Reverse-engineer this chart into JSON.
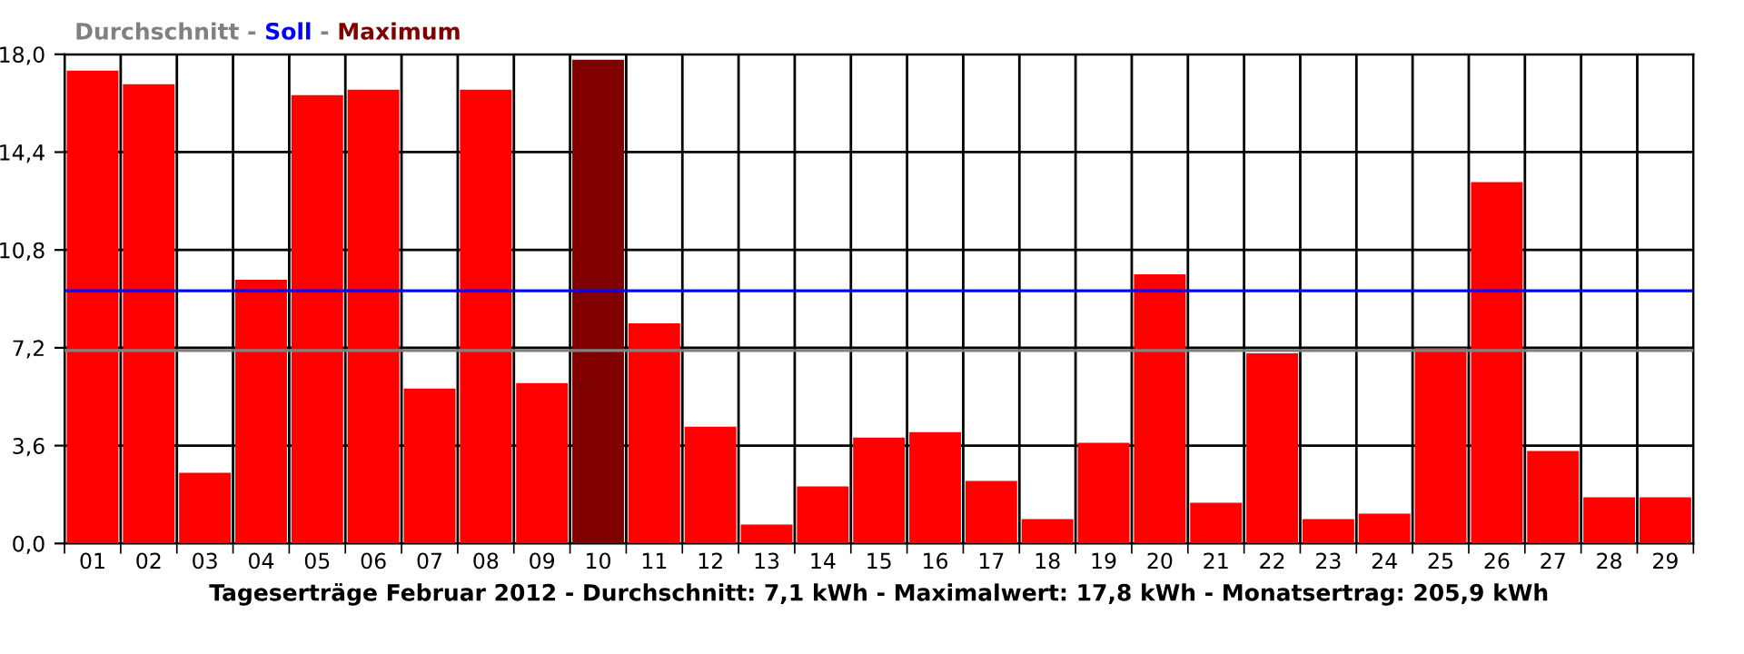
{
  "chart_data": {
    "type": "bar",
    "annotations": [
      "-",
      "-"
    ],
    "xlabel": "Tageserträge Februar 2012 - Durchschnitt: 7,1 kWh - Maximalwert: 17,8 kWh - Monatsertrag: 205,9 kWh",
    "categories": [
      "01",
      "02",
      "03",
      "04",
      "05",
      "06",
      "07",
      "08",
      "09",
      "10",
      "11",
      "12",
      "13",
      "14",
      "15",
      "16",
      "17",
      "18",
      "19",
      "20",
      "21",
      "22",
      "23",
      "24",
      "25",
      "26",
      "27",
      "28",
      "29"
    ],
    "series": [
      {
        "color": "#ff0000",
        "values": [
          17.4,
          16.9,
          2.6,
          9.7,
          16.5,
          16.7,
          5.7,
          16.7,
          5.9,
          null,
          8.1,
          4.3,
          0.7,
          2.1,
          3.9,
          4.1,
          2.3,
          0.9,
          3.7,
          9.9,
          1.5,
          7.0,
          0.9,
          1.1,
          7.2,
          13.3,
          3.4,
          1.7,
          1.7
        ]
      },
      {
        "name": "Maximum",
        "color": "#800000",
        "values": [
          null,
          null,
          null,
          null,
          null,
          null,
          null,
          null,
          null,
          17.8,
          null,
          null,
          null,
          null,
          null,
          null,
          null,
          null,
          null,
          null,
          null,
          null,
          null,
          null,
          null,
          null,
          null,
          null,
          null
        ]
      }
    ],
    "ref_lines": [
      {
        "axis": "y",
        "value": 7.1,
        "label": "Durchschnitt",
        "color": "#808080"
      },
      {
        "axis": "y",
        "value": 9.3,
        "label": "Soll",
        "color": "#0000ff"
      }
    ],
    "ylim": [
      0,
      18
    ],
    "yticks": [
      {
        "value": 0,
        "label": "0,0"
      },
      {
        "value": 3.6,
        "label": "3,6"
      },
      {
        "value": 7.2,
        "label": "7,2"
      },
      {
        "value": 10.8,
        "label": "10,8"
      },
      {
        "value": 14.4,
        "label": "14,4"
      },
      {
        "value": 18,
        "label": "18,0"
      }
    ],
    "grid": true,
    "legend": "top left"
  }
}
